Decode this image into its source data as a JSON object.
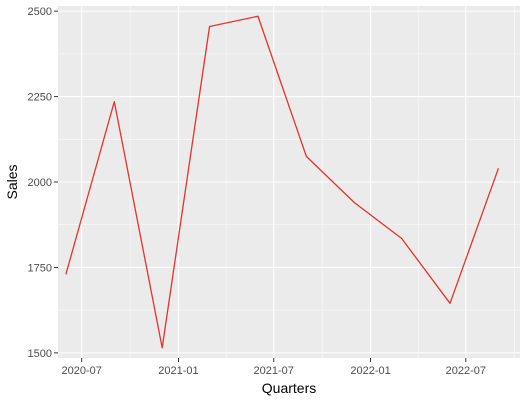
{
  "chart_data": {
    "type": "line",
    "title": "",
    "xlabel": "Quarters",
    "ylabel": "Sales",
    "x": [
      "2020-06-01",
      "2020-09-01",
      "2020-12-01",
      "2021-03-01",
      "2021-06-01",
      "2021-09-01",
      "2021-12-01",
      "2022-03-01",
      "2022-06-01",
      "2022-09-01"
    ],
    "series": [
      {
        "values": [
          1730,
          2235,
          1515,
          2455,
          2485,
          2075,
          1940,
          1835,
          1645,
          2040
        ],
        "color": "#e8322a"
      }
    ],
    "xlim": [
      "2020-05-17",
      "2022-10-12"
    ],
    "ylim": [
      1485,
      2515
    ],
    "x_ticks": [
      "2020-07-01",
      "2021-01-01",
      "2021-07-01",
      "2022-01-01",
      "2022-07-01"
    ],
    "x_tick_labels": [
      "2020-07",
      "2021-01",
      "2021-07",
      "2022-01",
      "2022-07"
    ],
    "y_ticks": [
      1500,
      1750,
      2000,
      2250,
      2500
    ],
    "y_tick_labels": [
      "1500",
      "1750",
      "2000",
      "2250",
      "2500"
    ],
    "grid": true,
    "panel_color": "#ebebeb",
    "grid_color": "#ffffff",
    "legend": "none"
  }
}
